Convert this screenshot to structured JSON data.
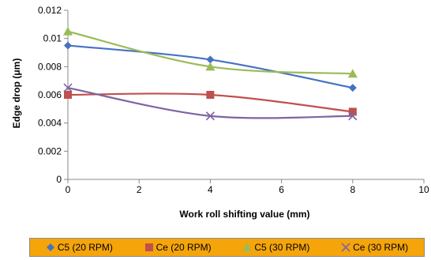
{
  "chart_data": {
    "type": "line",
    "title": "",
    "xlabel": "Work roll shifting value (mm)",
    "ylabel": "Edge drop (μm)",
    "xlim": [
      0,
      10
    ],
    "ylim": [
      0,
      0.012
    ],
    "xticks": [
      0,
      2,
      4,
      6,
      8,
      10
    ],
    "yticks": [
      0,
      0.002,
      0.004,
      0.006,
      0.008,
      0.01,
      0.012
    ],
    "ytick_labels": [
      "0",
      "0.002",
      "0.004",
      "0.006",
      "0.008",
      "0.01",
      "0.012"
    ],
    "grid": false,
    "legend_position": "bottom",
    "x": [
      0,
      4,
      8
    ],
    "series": [
      {
        "name": "C5 (20 RPM)",
        "values": [
          0.0095,
          0.0085,
          0.0065
        ],
        "color": "#4472c4",
        "marker": "diamond"
      },
      {
        "name": "Ce (20 RPM)",
        "values": [
          0.006,
          0.006,
          0.0048
        ],
        "color": "#c0504d",
        "marker": "square"
      },
      {
        "name": "C5 (30 RPM)",
        "values": [
          0.0105,
          0.008,
          0.0075
        ],
        "color": "#9bbb59",
        "marker": "triangle"
      },
      {
        "name": "Ce (30 RPM)",
        "values": [
          0.0065,
          0.0045,
          0.0045
        ],
        "color": "#8064a2",
        "marker": "x"
      }
    ]
  }
}
